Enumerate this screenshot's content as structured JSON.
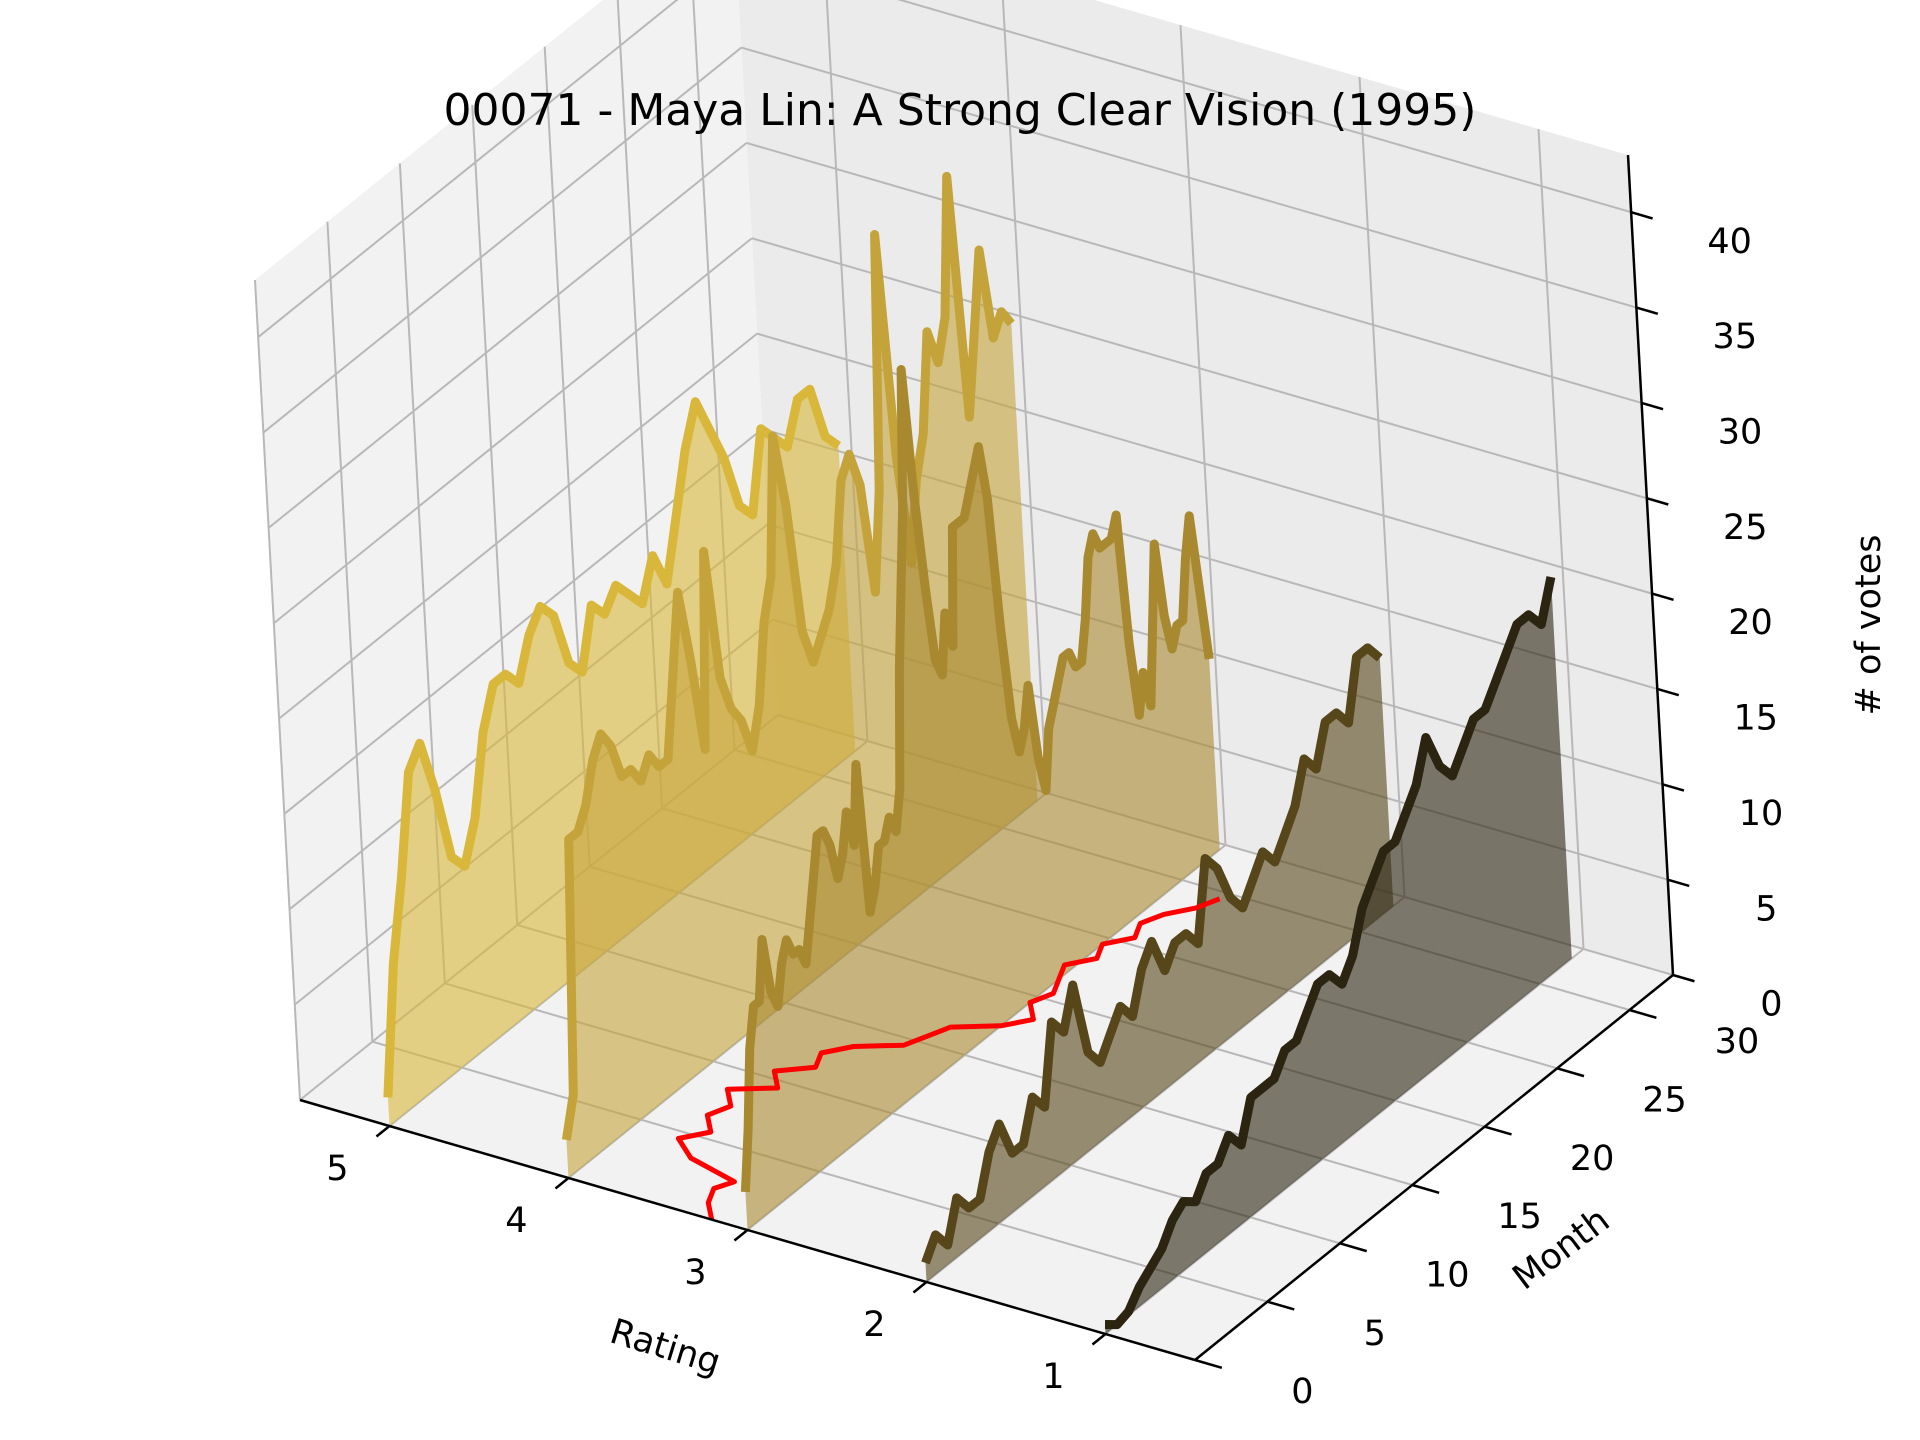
{
  "chart_data": {
    "type": "line",
    "title": "00071 - Maya Lin: A Strong Clear Vision (1995)",
    "xlabel": "Rating",
    "ylabel": "Month",
    "zlabel": "# of votes",
    "x_ticks": [
      "5",
      "4",
      "3",
      "2",
      "1"
    ],
    "y_ticks": [
      "0",
      "5",
      "10",
      "15",
      "20",
      "25",
      "30"
    ],
    "z_ticks": [
      "0",
      "5",
      "10",
      "15",
      "20",
      "25",
      "30",
      "35",
      "40"
    ],
    "ylim": [
      0,
      33
    ],
    "zlim": [
      0,
      43
    ],
    "grid": true,
    "series": [
      {
        "rating": 5,
        "color": "#d9b73b",
        "values": [
          1.5,
          8,
          12,
          17,
          18,
          15,
          11,
          10,
          12,
          16,
          18,
          18,
          17,
          19,
          20,
          19,
          16,
          15,
          18,
          17,
          18,
          17,
          16,
          18,
          16,
          19,
          22,
          24,
          22,
          20,
          17,
          16,
          20,
          19,
          18,
          20,
          20,
          17,
          16
        ]
      },
      {
        "rating": 4,
        "color": "#c4a43a",
        "values": [
          2,
          4,
          17,
          17,
          18,
          20,
          21,
          20,
          18,
          18,
          17,
          18,
          17,
          17,
          21,
          25,
          21,
          16,
          26,
          19,
          17,
          16,
          14,
          16,
          20,
          22,
          29,
          25,
          18,
          16,
          17,
          18,
          20,
          24,
          25,
          23,
          17,
          22,
          35,
          23,
          17,
          21,
          23,
          28,
          26,
          28,
          35,
          22,
          26,
          30,
          25,
          26,
          25
        ]
      },
      {
        "rating": 3,
        "color": "#a88930",
        "values": [
          2,
          5,
          9,
          11,
          11,
          14,
          11,
          10,
          12,
          13,
          12,
          12,
          11,
          13,
          15,
          17,
          17,
          16,
          14,
          15,
          17,
          15,
          19,
          11,
          12,
          14,
          14,
          15,
          14,
          16,
          22,
          26,
          30,
          37,
          30,
          25,
          21,
          20,
          23,
          21,
          27,
          27,
          27,
          28,
          29,
          30,
          27,
          20,
          15,
          13,
          14,
          16,
          12,
          10,
          13,
          14,
          15,
          16,
          16,
          15,
          15,
          17,
          20,
          21,
          20,
          20,
          20,
          21,
          14,
          10,
          12,
          10,
          14,
          18,
          14,
          12,
          13,
          13,
          16,
          18,
          14,
          10
        ]
      },
      {
        "rating": 2,
        "color": "#56461a",
        "values": [
          1,
          2,
          1,
          3,
          2,
          2,
          4,
          5,
          3,
          3,
          5,
          4,
          8,
          7,
          9,
          5,
          4,
          5,
          6,
          5,
          7,
          8,
          6,
          7,
          7,
          6,
          10,
          9,
          7,
          6,
          7,
          8,
          7,
          8,
          9,
          11,
          10,
          12,
          12,
          11,
          14,
          14,
          13
        ]
      },
      {
        "rating": 1,
        "color": "#2b2410",
        "values": [
          0.5,
          0,
          0.2,
          1,
          1.5,
          2,
          3,
          3.5,
          3,
          4,
          4,
          5,
          4,
          6,
          6,
          6,
          7,
          7,
          8,
          9,
          9,
          8,
          9,
          11,
          12,
          13,
          13,
          14,
          15,
          17,
          15,
          14,
          15,
          16,
          16,
          17,
          18,
          19,
          19,
          18,
          20
        ]
      }
    ],
    "mean_line": {
      "color": "#ff0000",
      "points": [
        [
          3.2,
          0.0
        ],
        [
          3.3,
          1.0
        ],
        [
          3.35,
          2.0
        ],
        [
          3.3,
          2.8
        ],
        [
          3.6,
          3.5
        ],
        [
          3.75,
          4.5
        ],
        [
          3.65,
          5.5
        ],
        [
          3.75,
          6.5
        ],
        [
          3.7,
          7.5
        ],
        [
          3.8,
          8.5
        ],
        [
          3.6,
          9.5
        ],
        [
          3.7,
          10.5
        ],
        [
          3.55,
          11.5
        ],
        [
          3.6,
          12.5
        ],
        [
          3.5,
          13.5
        ],
        [
          3.3,
          14.5
        ],
        [
          3.25,
          15.5
        ],
        [
          3.2,
          16.5
        ],
        [
          3.0,
          17.5
        ],
        [
          2.9,
          18.5
        ],
        [
          3.0,
          19.5
        ],
        [
          2.95,
          20.5
        ],
        [
          3.0,
          21.5
        ],
        [
          3.05,
          22.5
        ],
        [
          2.95,
          23.5
        ],
        [
          3.0,
          24.5
        ],
        [
          2.9,
          25.5
        ],
        [
          2.95,
          26.5
        ],
        [
          2.9,
          27.5
        ],
        [
          2.8,
          28.5
        ],
        [
          2.75,
          29.5
        ]
      ]
    }
  }
}
